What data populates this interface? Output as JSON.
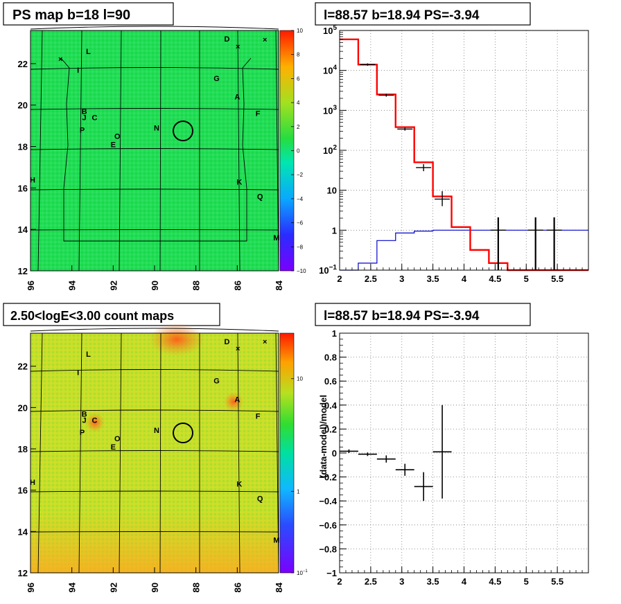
{
  "panels": {
    "ps_map": {
      "title": "PS map b=18 l=90"
    },
    "spectrum": {
      "title": "l=88.57 b=18.94 PS=-3.94"
    },
    "count_map": {
      "title": "2.50<logE<3.00 count maps"
    },
    "residual": {
      "title": "l=88.57 b=18.94 PS=-3.94"
    }
  },
  "colors": {
    "model": "#ff0000",
    "background": "#0000cc",
    "data": "#000000",
    "ps_fill": "#22dd55",
    "count_fill": "#c6e02a"
  },
  "chart_data": [
    {
      "id": "ps_map",
      "type": "heatmap",
      "title": "PS map b=18 l=90",
      "xlim": [
        96,
        84
      ],
      "ylim": [
        12,
        23.6
      ],
      "xticks": [
        "96",
        "94",
        "92",
        "90",
        "88",
        "86",
        "84"
      ],
      "yticks": [
        "12",
        "14",
        "16",
        "18",
        "20",
        "22"
      ],
      "colorbar": {
        "min": -10,
        "max": 10,
        "ticks": [
          "10",
          "8",
          "6",
          "4",
          "2",
          "0",
          "−2",
          "−4",
          "−6",
          "−8",
          "−10"
        ]
      },
      "sources": [
        {
          "name": "D",
          "l": 86.5,
          "b": 23.2
        },
        {
          "name": "L",
          "l": 93.2,
          "b": 22.6
        },
        {
          "name": "I",
          "l": 93.7,
          "b": 21.7
        },
        {
          "name": "G",
          "l": 87.0,
          "b": 21.3
        },
        {
          "name": "A",
          "l": 86.0,
          "b": 20.4
        },
        {
          "name": "F",
          "l": 85.0,
          "b": 19.6
        },
        {
          "name": "B",
          "l": 93.4,
          "b": 19.7
        },
        {
          "name": "J",
          "l": 93.4,
          "b": 19.4
        },
        {
          "name": "C",
          "l": 92.9,
          "b": 19.4
        },
        {
          "name": "N",
          "l": 89.9,
          "b": 18.9
        },
        {
          "name": "P",
          "l": 93.5,
          "b": 18.8
        },
        {
          "name": "O",
          "l": 91.8,
          "b": 18.5
        },
        {
          "name": "E",
          "l": 92.0,
          "b": 18.1
        },
        {
          "name": "H",
          "l": 95.9,
          "b": 16.4
        },
        {
          "name": "K",
          "l": 85.9,
          "b": 16.3
        },
        {
          "name": "Q",
          "l": 84.9,
          "b": 15.6
        },
        {
          "name": "M",
          "l": 84.1,
          "b": 13.6
        }
      ],
      "circle": {
        "l": 88.57,
        "b": 18.94
      }
    },
    {
      "id": "spectrum",
      "type": "line",
      "title": "l=88.57 b=18.94 PS=-3.94",
      "yscale": "log",
      "xlim": [
        2,
        6
      ],
      "ylim": [
        0.1,
        100000
      ],
      "xticks": [
        "2",
        "2.5",
        "3",
        "3.5",
        "4",
        "4.5",
        "5",
        "5.5"
      ],
      "yticks": [
        "10^-1",
        "1",
        "10",
        "10^2",
        "10^3",
        "10^4",
        "10^5"
      ],
      "bin_edges": [
        2.0,
        2.3,
        2.6,
        2.9,
        3.2,
        3.5,
        3.8,
        4.1,
        4.4,
        4.7,
        5.0,
        5.3,
        5.6,
        6.0
      ],
      "series": [
        {
          "values": [
            60000,
            14000,
            2500,
            380,
            50,
            7,
            1.2,
            0.32,
            0.15,
            0.1,
            0.1,
            0.1,
            0.1
          ]
        },
        {
          "values": [
            0.1,
            0.15,
            0.55,
            0.85,
            0.95,
            1.0,
            1.0,
            1.0,
            1.0,
            1.0,
            1.0,
            1.0,
            1.0
          ]
        }
      ],
      "data_points": [
        {
          "x": 2.45,
          "y": 14000,
          "hi": 15000,
          "lo": 13100
        },
        {
          "x": 2.75,
          "y": 2400,
          "hi": 2600,
          "lo": 2200
        },
        {
          "x": 3.05,
          "y": 340,
          "hi": 370,
          "lo": 310
        },
        {
          "x": 3.35,
          "y": 37,
          "hi": 45,
          "lo": 30
        },
        {
          "x": 3.65,
          "y": 6,
          "hi": 9.5,
          "lo": 4
        },
        {
          "x": 4.55,
          "y": 1,
          "hi": 2.1,
          "lo": 0.1
        },
        {
          "x": 5.15,
          "y": 1,
          "hi": 2.1,
          "lo": 0.1
        },
        {
          "x": 5.45,
          "y": 1,
          "hi": 2.1,
          "lo": 0.1
        }
      ]
    },
    {
      "id": "count_map",
      "type": "heatmap",
      "title": "2.50<logE<3.00 count maps",
      "xlim": [
        96,
        84
      ],
      "ylim": [
        12,
        23.6
      ],
      "xticks": [
        "96",
        "94",
        "92",
        "90",
        "88",
        "86",
        "84"
      ],
      "yticks": [
        "12",
        "14",
        "16",
        "18",
        "20",
        "22"
      ],
      "colorbar": {
        "scale": "log",
        "ticks": [
          "10",
          "1",
          "10^-1"
        ]
      },
      "sources_ref": "ps_map",
      "circle": {
        "l": 88.57,
        "b": 18.94
      }
    },
    {
      "id": "residual",
      "type": "scatter",
      "title": "l=88.57 b=18.94 PS=-3.94",
      "ylabel": "(data-model)/model",
      "xlim": [
        2,
        6
      ],
      "ylim": [
        -1,
        1
      ],
      "xticks": [
        "2",
        "2.5",
        "3",
        "3.5",
        "4",
        "4.5",
        "5",
        "5.5"
      ],
      "yticks": [
        "1",
        "0.8",
        "0.6",
        "0.4",
        "0.2",
        "0",
        "−0.2",
        "−0.4",
        "−0.6",
        "−0.8",
        "−1"
      ],
      "points": [
        {
          "x": 2.15,
          "y": 0.015,
          "xerr": 0.15,
          "yerr": 0.015
        },
        {
          "x": 2.45,
          "y": -0.01,
          "xerr": 0.15,
          "yerr": 0.015
        },
        {
          "x": 2.75,
          "y": -0.05,
          "xerr": 0.15,
          "yerr": 0.03
        },
        {
          "x": 3.05,
          "y": -0.14,
          "xerr": 0.15,
          "yerr": 0.05
        },
        {
          "x": 3.35,
          "y": -0.28,
          "xerr": 0.15,
          "yerr": 0.12
        },
        {
          "x": 3.65,
          "y": 0.01,
          "xerr": 0.15,
          "yerr": 0.39
        }
      ]
    }
  ]
}
